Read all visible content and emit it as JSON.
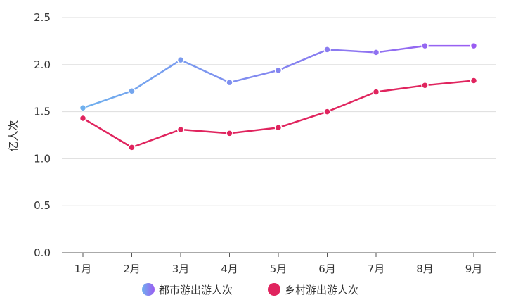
{
  "chart_data": {
    "type": "line",
    "title": "",
    "xlabel": "",
    "ylabel": "亿人次",
    "categories": [
      "1月",
      "2月",
      "3月",
      "4月",
      "5月",
      "6月",
      "7月",
      "8月",
      "9月"
    ],
    "ylim": [
      0,
      2.5
    ],
    "yticks": [
      "0.0",
      "0.5",
      "1.0",
      "1.5",
      "2.0",
      "2.5"
    ],
    "grid": true,
    "legend_position": "bottom",
    "series": [
      {
        "name": "都市游出游人次",
        "color_start": "#6fb0ee",
        "color_end": "#9a5cf2",
        "values": [
          1.54,
          1.72,
          2.05,
          1.81,
          1.94,
          2.16,
          2.13,
          2.2,
          2.2
        ]
      },
      {
        "name": "乡村游出游人次",
        "color_start": "#e0245e",
        "color_end": "#e0245e",
        "values": [
          1.43,
          1.12,
          1.31,
          1.27,
          1.33,
          1.5,
          1.71,
          1.78,
          1.83
        ]
      }
    ]
  }
}
